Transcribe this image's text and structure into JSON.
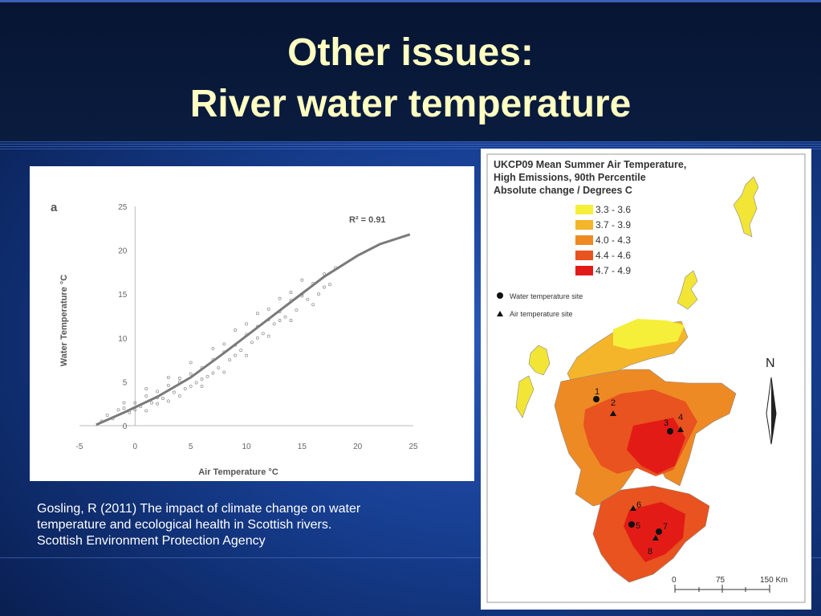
{
  "slide": {
    "title_line1": "Other issues:",
    "title_line2": "River water temperature",
    "caption_lines": [
      "Gosling, R (2011) The impact of climate change on water",
      "temperature and ecological health in Scottish rivers.",
      "Scottish Environment Protection Agency"
    ]
  },
  "chart_data": {
    "type": "scatter",
    "panel_label": "a",
    "xlabel": "Air Temperature °C",
    "ylabel": "Water Temperature °C",
    "xlim": [
      -5,
      25
    ],
    "ylim": [
      0,
      25
    ],
    "x_ticks": [
      -5,
      0,
      5,
      10,
      15,
      20,
      25
    ],
    "y_ticks": [
      0,
      5,
      10,
      15,
      20,
      25
    ],
    "annotation": "R² = 0.91",
    "trend_line": {
      "x": [
        -3.5,
        -1,
        2,
        5,
        8,
        11,
        14,
        17,
        20,
        22,
        24.7
      ],
      "y": [
        0.1,
        1.5,
        3.3,
        5.5,
        8.3,
        11.2,
        14.1,
        17.0,
        19.4,
        20.7,
        21.8
      ]
    },
    "points": {
      "x": [
        -3,
        -2.5,
        -2,
        -1.5,
        -1,
        -0.5,
        0,
        0.5,
        1,
        1.5,
        2,
        2.5,
        3,
        3.5,
        4,
        4.5,
        5,
        5.5,
        6,
        6.5,
        7,
        7.5,
        8,
        8.5,
        9,
        9.5,
        10,
        10.5,
        11,
        11.5,
        12,
        12.5,
        13,
        13.5,
        14,
        14.5,
        15,
        15.5,
        16,
        16.5,
        17,
        17.5,
        18,
        -1,
        0,
        1,
        2,
        3,
        4,
        5,
        6,
        7,
        8,
        9,
        10,
        11,
        12,
        13,
        14,
        15,
        16,
        1,
        3,
        5,
        7,
        9,
        11,
        13,
        15,
        17,
        2,
        4,
        6,
        8,
        10,
        12,
        14
      ],
      "y": [
        0.5,
        1.2,
        0.8,
        1.8,
        2.0,
        1.5,
        2.6,
        2.2,
        3.4,
        2.6,
        3.9,
        3.1,
        4.6,
        3.8,
        5.0,
        4.2,
        5.9,
        4.9,
        6.6,
        5.6,
        7.5,
        6.6,
        8.4,
        7.5,
        9.2,
        8.6,
        10.4,
        9.5,
        11.3,
        10.5,
        12.1,
        11.6,
        13.0,
        12.4,
        14.3,
        13.2,
        15.0,
        14.4,
        16.2,
        15.0,
        17.3,
        16.1,
        18.0,
        2.6,
        1.8,
        4.2,
        2.5,
        5.5,
        3.4,
        7.2,
        4.5,
        8.8,
        6.1,
        10.9,
        8.0,
        12.8,
        10.2,
        14.5,
        12.0,
        16.6,
        13.8,
        1.7,
        2.8,
        4.5,
        6.0,
        8.0,
        10.0,
        12.0,
        14.8,
        15.8,
        3.2,
        5.4,
        5.3,
        9.3,
        11.6,
        13.3,
        15.2
      ]
    }
  },
  "map": {
    "title_lines": [
      "UKCP09 Mean Summer Air Temperature,",
      "High Emissions, 90th Percentile",
      "Absolute change / Degrees C"
    ],
    "legend": [
      {
        "label": "3.3 - 3.6",
        "color": "#f5ef3a"
      },
      {
        "label": "3.7 - 3.9",
        "color": "#f4b52a"
      },
      {
        "label": "4.0 - 4.3",
        "color": "#ee8a24"
      },
      {
        "label": "4.4 - 4.6",
        "color": "#e8531f"
      },
      {
        "label": "4.7 - 4.9",
        "color": "#e31b17"
      }
    ],
    "site_legend": [
      "Water temperature site",
      "Air temperature site"
    ],
    "sites": [
      "1",
      "2",
      "3",
      "4",
      "5",
      "6",
      "7",
      "8"
    ],
    "north_label": "N",
    "scale_labels": [
      "0",
      "75",
      "150 Km"
    ]
  }
}
